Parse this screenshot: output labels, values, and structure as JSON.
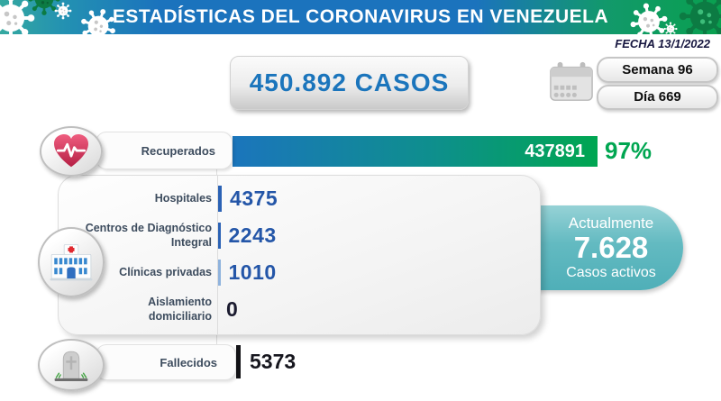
{
  "header": {
    "title": "ESTADÍSTICAS DEL CORONAVIRUS EN VENEZUELA"
  },
  "fecha": "FECHA 13/1/2022",
  "total": {
    "text": "450.892 CASOS"
  },
  "calendar": {
    "week": "Semana 96",
    "day": "Día 669"
  },
  "recovered": {
    "label": "Recuperados",
    "value": "437891",
    "percent": "97%"
  },
  "care": {
    "rows": [
      {
        "label": "Hospitales",
        "value": "4375"
      },
      {
        "label": "Centros de Diagnóstico Integral",
        "value": "2243"
      },
      {
        "label": "Clínicas privadas",
        "value": "1010"
      },
      {
        "label": "Aislamiento domiciliario",
        "value": "0"
      }
    ]
  },
  "active": {
    "line1": "Actualmente",
    "value": "7.628",
    "line2": "Casos activos"
  },
  "deaths": {
    "label": "Fallecidos",
    "value": "5373"
  },
  "colors": {
    "header_teal": "#35A9A0",
    "header_blue": "#1B73BD",
    "header_green": "#09A04F",
    "bar_blue": "#1B75BC",
    "bar_green": "#00A651",
    "percent_green": "#00A651",
    "number_blue": "#2456A8",
    "active_teal": "#4FAFB8",
    "deaths_black": "#141418"
  },
  "chart_data": {
    "type": "bar",
    "title": "ESTADÍSTICAS DEL CORONAVIRUS EN VENEZUELA",
    "date": "13/1/2022",
    "week": 96,
    "day": 669,
    "total_cases": 450892,
    "categories": [
      "Recuperados",
      "Hospitales",
      "Centros de Diagnóstico Integral",
      "Clínicas privadas",
      "Aislamiento domiciliario",
      "Fallecidos"
    ],
    "values": [
      437891,
      4375,
      2243,
      1010,
      0,
      5373
    ],
    "recovered_percent": 97,
    "active_cases": 7628,
    "xlabel": "",
    "ylabel": "",
    "legend": false,
    "orientation": "horizontal"
  }
}
